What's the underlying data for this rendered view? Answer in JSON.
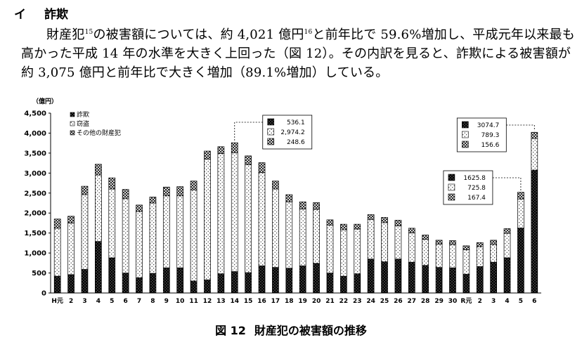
{
  "section": {
    "number": "イ",
    "title": "詐欺"
  },
  "paragraph": {
    "p1_a": "財産犯",
    "p1_sup1": "15",
    "p1_b": "の被害額については、約 4,021 億円",
    "p1_sup2": "16",
    "p1_c": "と前年比で 59.6%増加し、平成元年以来最も高かった平成 14 年の水準を大きく上回った（図 12）。その内訳を見ると、詐欺による被害額が約 3,075 億円と前年比で大きく増加（89.1%増加）している。"
  },
  "figure": {
    "number": "図 12",
    "title": "財産犯の被害額の推移"
  },
  "colors": {
    "fraud": "#000000",
    "theft": "#ffffff",
    "other": "#9a9a9a",
    "axis": "#000000",
    "grid": "#000000"
  },
  "chart_data": {
    "type": "bar",
    "stacked": true,
    "ylabel": "（億円）",
    "ylim": [
      0,
      4500
    ],
    "yticks": [
      "0",
      "500",
      "1,000",
      "1,500",
      "2,000",
      "2,500",
      "3,000",
      "3,500",
      "4,000",
      "4,500"
    ],
    "grid": false,
    "legend_position": "top-left",
    "categories": [
      "H元",
      "2",
      "3",
      "4",
      "5",
      "6",
      "7",
      "8",
      "9",
      "10",
      "11",
      "12",
      "13",
      "14",
      "15",
      "16",
      "17",
      "18",
      "19",
      "20",
      "21",
      "22",
      "23",
      "24",
      "25",
      "26",
      "27",
      "28",
      "29",
      "30",
      "R元",
      "2",
      "3",
      "4",
      "5",
      "6"
    ],
    "series": [
      {
        "name": "詐欺",
        "pattern": "dots-on-black",
        "values": [
          420,
          460,
          590,
          1290,
          880,
          500,
          380,
          490,
          630,
          630,
          300,
          330,
          480,
          536.1,
          510,
          680,
          640,
          620,
          680,
          740,
          500,
          420,
          480,
          850,
          780,
          850,
          770,
          690,
          640,
          630,
          470,
          660,
          770,
          880,
          1625.8,
          3074.7
        ]
      },
      {
        "name": "窃盗",
        "pattern": "dots-on-white",
        "values": [
          1200,
          1290,
          1870,
          1660,
          1720,
          1860,
          1660,
          1760,
          1800,
          1800,
          2280,
          3020,
          3010,
          2974.2,
          2700,
          2330,
          1960,
          1660,
          1420,
          1350,
          1200,
          1160,
          1120,
          990,
          980,
          830,
          730,
          650,
          580,
          580,
          610,
          500,
          440,
          610,
          725.8,
          789.3
        ]
      },
      {
        "name": "その他の財産犯",
        "pattern": "crosshatch",
        "values": [
          230,
          170,
          210,
          270,
          280,
          230,
          160,
          150,
          220,
          230,
          220,
          200,
          170,
          248.6,
          220,
          250,
          200,
          180,
          180,
          170,
          130,
          140,
          120,
          120,
          130,
          140,
          120,
          110,
          100,
          100,
          100,
          100,
          110,
          120,
          167.4,
          156.6
        ]
      }
    ],
    "annotations": [
      {
        "category_index": 13,
        "values": [
          "536.1",
          "2,974.2",
          "248.6"
        ]
      },
      {
        "category_index": 34,
        "values": [
          "1625.8",
          "725.8",
          "167.4"
        ]
      },
      {
        "category_index": 35,
        "values": [
          "3074.7",
          "789.3",
          "156.6"
        ]
      }
    ]
  }
}
